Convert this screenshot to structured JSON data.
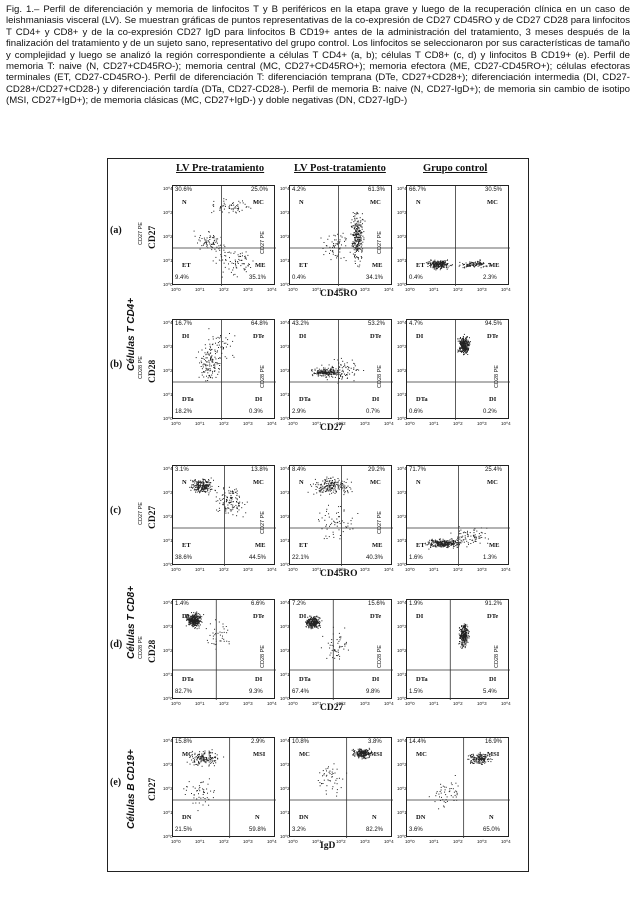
{
  "caption": {
    "text": "Fig. 1.– Perfil de diferenciación y memoria de linfocitos T y B periféricos en la etapa grave y luego de la recuperación clínica en un caso de leishmaniasis visceral (LV). Se muestran gráficas de puntos representativas de la co-expresión de CD27 CD45RO y de CD27 CD28 para linfocitos T CD4+ y CD8+ y de la co-expresión CD27 IgD para linfocitos B CD19+ antes de la administración del tratamiento, 3 meses después de la finalización del tratamiento y de un sujeto sano, representativo del grupo control. Los linfocitos se seleccionaron por sus características de tamaño y complejidad y luego se analizó la región correspondiente a células T CD4+ (a, b); células T CD8+ (c, d) y linfocitos B CD19+ (e). Perfil de memoria T: naive (N, CD27+CD45RO-); memoria central (MC, CD27+CD45RO+); memoria efectora (ME, CD27-CD45RO+); células efectoras terminales (ET, CD27-CD45RO-). Perfil de diferenciación T: diferenciación temprana (DTe, CD27+CD28+); diferenciación intermedia (DI, CD27-CD28+/CD27+CD28-) y diferenciación tardía (DTa, CD27-CD28-). Perfil de memoria B: naive (N, CD27-IgD+); de memoria sin cambio de isotipo (MSI, CD27+IgD+); de memoria clásicas (MC, CD27+IgD-) y doble negativas (DN, CD27-IgD-)"
  },
  "columns": [
    "LV Pre-tratamiento",
    "LV Post-tratamiento",
    "Grupo control"
  ],
  "group_labels": {
    "cd4": "Células T CD4+",
    "cd8": "Células T CD8+",
    "cd19": "Células B CD19+"
  },
  "ticks": [
    "10^0",
    "10^1",
    "10^2",
    "10^3",
    "10^4"
  ],
  "rows": [
    {
      "id": "a",
      "label": "(a)",
      "y_axis": "CD27",
      "y_small": "CD27 PE",
      "x_axis": "CD45RO",
      "quadrants": {
        "tl": "N",
        "tr": "MC",
        "bl": "ET",
        "br": "ME"
      },
      "plots": [
        {
          "tl": "30.6%",
          "tr": "25.0%",
          "bl": "9.4%",
          "br": "35.1%",
          "inner_y": "CD27 PE"
        },
        {
          "tl": "4.2%",
          "tr": "61.3%",
          "bl": "0.4%",
          "br": "34.1%",
          "inner_y": "CD27 PE"
        },
        {
          "tl": "66.7%",
          "tr": "30.5%",
          "bl": "0.4%",
          "br": "2.3%",
          "inner_y": ""
        }
      ]
    },
    {
      "id": "b",
      "label": "(b)",
      "y_axis": "CD28",
      "y_small": "CD28 PE",
      "x_axis": "CD27",
      "quadrants": {
        "tl": "DI",
        "tr": "DTe",
        "bl": "DTa",
        "br": "DI"
      },
      "plots": [
        {
          "tl": "16.7%",
          "tr": "64.8%",
          "bl": "18.2%",
          "br": "0.3%",
          "inner_y": "CD28 PE"
        },
        {
          "tl": "43.2%",
          "tr": "53.2%",
          "bl": "2.9%",
          "br": "0.7%",
          "inner_y": "CD28 PE"
        },
        {
          "tl": "4.7%",
          "tr": "94.5%",
          "bl": "0.6%",
          "br": "0.2%",
          "inner_y": "CD28 PE"
        }
      ]
    },
    {
      "id": "c",
      "label": "(c)",
      "y_axis": "CD27",
      "y_small": "CD27 PE",
      "x_axis": "CD45RO",
      "quadrants": {
        "tl": "N",
        "tr": "MC",
        "bl": "ET",
        "br": "ME"
      },
      "plots": [
        {
          "tl": "3.1%",
          "tr": "13.8%",
          "bl": "38.6%",
          "br": "44.5%",
          "inner_y": "CD27 PE"
        },
        {
          "tl": "8.4%",
          "tr": "29.2%",
          "bl": "22.1%",
          "br": "40.3%",
          "inner_y": "CD27 PE"
        },
        {
          "tl": "71.7%",
          "tr": "25.4%",
          "bl": "1.6%",
          "br": "1.3%",
          "inner_y": ""
        }
      ]
    },
    {
      "id": "d",
      "label": "(d)",
      "y_axis": "CD28",
      "y_small": "CD28 PE",
      "x_axis": "CD27",
      "quadrants": {
        "tl": "DI",
        "tr": "DTe",
        "bl": "DTa",
        "br": "DI"
      },
      "plots": [
        {
          "tl": "1.4%",
          "tr": "6.6%",
          "bl": "82.7%",
          "br": "9.3%",
          "inner_y": "CD28 PE"
        },
        {
          "tl": "7.2%",
          "tr": "15.6%",
          "bl": "67.4%",
          "br": "9.8%",
          "inner_y": "CD28 PE"
        },
        {
          "tl": "1.9%",
          "tr": "91.2%",
          "bl": "1.5%",
          "br": "5.4%",
          "inner_y": "CD28 PE"
        }
      ]
    },
    {
      "id": "e",
      "label": "(e)",
      "y_axis": "CD27",
      "y_small": "",
      "x_axis": "IgD",
      "quadrants": {
        "tl": "MC",
        "tr": "MSI",
        "bl": "DN",
        "br": "N"
      },
      "plots": [
        {
          "tl": "15.8%",
          "tr": "2.9%",
          "bl": "21.5%",
          "br": "59.8%",
          "inner_y": ""
        },
        {
          "tl": "10.8%",
          "tr": "3.8%",
          "bl": "3.2%",
          "br": "82.2%",
          "inner_y": ""
        },
        {
          "tl": "14.4%",
          "tr": "16.9%",
          "bl": "3.6%",
          "br": "65.0%",
          "inner_y": ""
        }
      ]
    }
  ]
}
